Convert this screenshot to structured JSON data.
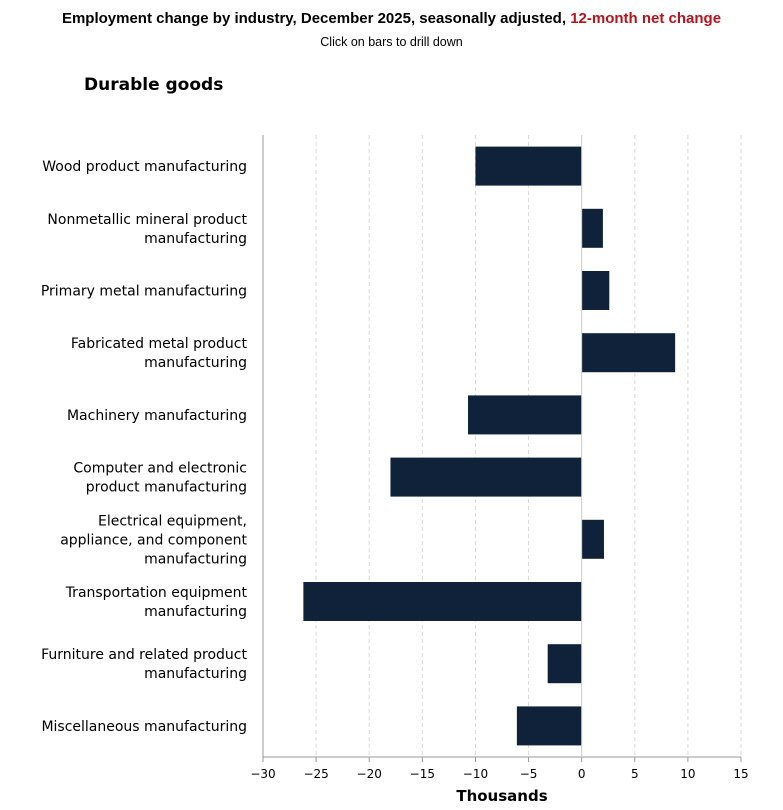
{
  "header": {
    "title_main": "Employment change by industry, December 2025, seasonally adjusted,",
    "title_highlight": "12-month net change",
    "subtitle": "Click on bars to drill down"
  },
  "section_title": "Durable goods",
  "colors": {
    "bar": "#0f2239",
    "highlight": "#b5141c",
    "grid": "#d9d9d9",
    "axis": "#999999"
  },
  "chart_data": {
    "type": "bar",
    "orientation": "horizontal",
    "title": "Employment change by industry, December 2025, seasonally adjusted, 12-month net change",
    "xlabel": "Thousands",
    "ylabel": "",
    "xlim": [
      -30,
      15
    ],
    "xticks": [
      -30,
      -25,
      -20,
      -15,
      -10,
      -5,
      0,
      5,
      10,
      15
    ],
    "grid": true,
    "categories": [
      [
        "Wood product manufacturing"
      ],
      [
        "Nonmetallic mineral product",
        "manufacturing"
      ],
      [
        "Primary metal manufacturing"
      ],
      [
        "Fabricated metal product",
        "manufacturing"
      ],
      [
        "Machinery manufacturing"
      ],
      [
        "Computer and electronic",
        "product manufacturing"
      ],
      [
        "Electrical equipment,",
        "appliance, and component",
        "manufacturing"
      ],
      [
        "Transportation equipment",
        "manufacturing"
      ],
      [
        "Furniture and related product",
        "manufacturing"
      ],
      [
        "Miscellaneous manufacturing"
      ]
    ],
    "values": [
      -10.0,
      2.0,
      2.6,
      8.8,
      -10.7,
      -18.0,
      2.1,
      -26.2,
      -3.2,
      -6.1
    ]
  }
}
